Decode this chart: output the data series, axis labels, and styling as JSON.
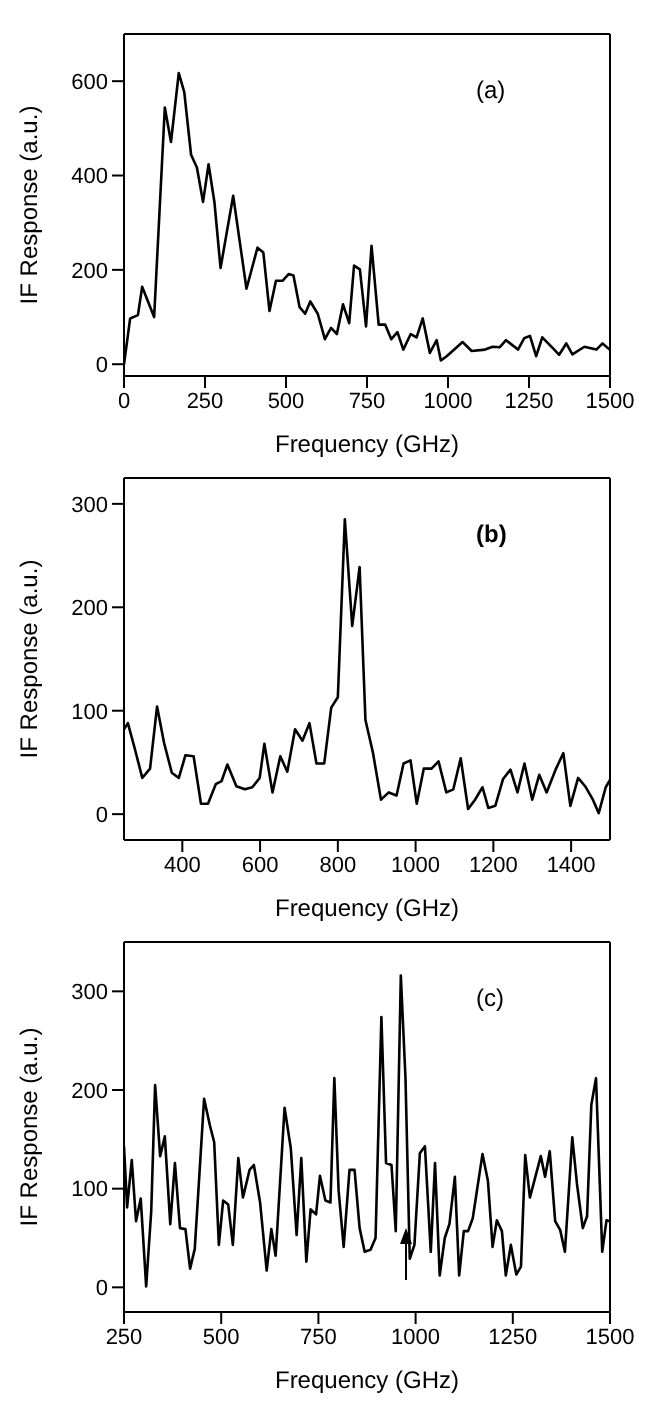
{
  "chart_data": [
    {
      "type": "line",
      "xlabel": "Frequency (GHz)",
      "ylabel": "IF Response (a.u.)",
      "annotations": [
        "(a)"
      ],
      "xlim": [
        0,
        1500
      ],
      "ylim": [
        -25,
        700
      ],
      "xticks": [
        0,
        250,
        500,
        750,
        1000,
        1250,
        1500
      ],
      "yticks": [
        0,
        200,
        400,
        600
      ],
      "line_style": "solid",
      "marker": "none",
      "series": [
        {
          "color": "#000000",
          "x": [
            0,
            19,
            43,
            56,
            93,
            126,
            145,
            169,
            186,
            207,
            225,
            244,
            261,
            279,
            298,
            337,
            378,
            412,
            430,
            449,
            469,
            490,
            508,
            523,
            542,
            559,
            575,
            598,
            620,
            639,
            657,
            676,
            695,
            710,
            728,
            747,
            764,
            786,
            806,
            825,
            844,
            862,
            885,
            903,
            922,
            944,
            965,
            978,
            996,
            1045,
            1073,
            1114,
            1138,
            1160,
            1179,
            1216,
            1235,
            1253,
            1272,
            1291,
            1328,
            1343,
            1365,
            1384,
            1421,
            1458,
            1477,
            1499
          ],
          "values": [
            0,
            97,
            104,
            164,
            100,
            544,
            471,
            617,
            577,
            444,
            417,
            344,
            424,
            344,
            204,
            357,
            160,
            247,
            237,
            113,
            177,
            177,
            191,
            188,
            121,
            107,
            133,
            107,
            53,
            77,
            64,
            127,
            87,
            209,
            201,
            80,
            251,
            84,
            84,
            53,
            68,
            31,
            64,
            57,
            97,
            24,
            51,
            8,
            17,
            47,
            28,
            31,
            37,
            36,
            51,
            31,
            55,
            60,
            17,
            57,
            31,
            20,
            44,
            21,
            37,
            31,
            44,
            31
          ]
        }
      ]
    },
    {
      "type": "line",
      "xlabel": "Frequency (GHz)",
      "ylabel": "IF Response (a.u.)",
      "annotations": [
        "(b)"
      ],
      "xlim": [
        250,
        1500
      ],
      "ylim": [
        -25,
        325
      ],
      "xticks": [
        400,
        600,
        800,
        1000,
        1200,
        1400
      ],
      "yticks": [
        0,
        100,
        200,
        300
      ],
      "line_style": "solid",
      "marker": "none",
      "series": [
        {
          "color": "#000000",
          "x": [
            250,
            260,
            278,
            297,
            317,
            335,
            353,
            373,
            391,
            408,
            429,
            448,
            466,
            486,
            501,
            516,
            539,
            561,
            580,
            599,
            611,
            632,
            652,
            670,
            690,
            709,
            727,
            745,
            765,
            783,
            800,
            818,
            837,
            856,
            871,
            890,
            911,
            931,
            951,
            969,
            987,
            1003,
            1021,
            1041,
            1059,
            1079,
            1097,
            1116,
            1135,
            1153,
            1172,
            1187,
            1205,
            1225,
            1244,
            1262,
            1280,
            1300,
            1318,
            1337,
            1360,
            1380,
            1398,
            1418,
            1436,
            1456,
            1471,
            1489,
            1500
          ],
          "values": [
            82,
            88,
            63,
            35,
            44,
            104,
            69,
            40,
            35,
            57,
            56,
            10,
            10,
            29,
            32,
            48,
            27,
            24,
            26,
            35,
            68,
            21,
            56,
            41,
            82,
            71,
            88,
            49,
            49,
            103,
            113,
            285,
            182,
            239,
            91,
            60,
            14,
            21,
            18,
            49,
            52,
            10,
            44,
            44,
            51,
            21,
            24,
            54,
            5,
            14,
            26,
            6,
            8,
            34,
            43,
            21,
            49,
            14,
            38,
            21,
            43,
            59,
            8,
            35,
            27,
            14,
            1,
            26,
            33
          ]
        }
      ]
    },
    {
      "type": "line",
      "xlabel": "Frequency (GHz)",
      "ylabel": "IF Response (a.u.)",
      "annotations": [
        "(c)"
      ],
      "xlim": [
        250,
        1500
      ],
      "ylim": [
        -25,
        350
      ],
      "xticks": [
        250,
        500,
        750,
        1000,
        1250,
        1500
      ],
      "yticks": [
        0,
        100,
        200,
        300
      ],
      "line_style": "solid",
      "marker": "none",
      "series": [
        {
          "color": "#000000",
          "x": [
            250,
            258,
            270,
            281,
            293,
            307,
            320,
            330,
            343,
            355,
            369,
            381,
            394,
            408,
            420,
            432,
            456,
            471,
            482,
            494,
            505,
            518,
            530,
            544,
            556,
            573,
            584,
            600,
            617,
            629,
            640,
            663,
            679,
            694,
            706,
            719,
            730,
            744,
            754,
            768,
            781,
            791,
            802,
            815,
            830,
            843,
            856,
            869,
            884,
            897,
            912,
            924,
            938,
            949,
            962,
            974,
            985,
            997,
            1011,
            1024,
            1039,
            1050,
            1062,
            1075,
            1087,
            1101,
            1112,
            1124,
            1135,
            1147,
            1172,
            1186,
            1198,
            1209,
            1222,
            1232,
            1245,
            1259,
            1271,
            1282,
            1294,
            1322,
            1333,
            1345,
            1359,
            1372,
            1384,
            1403,
            1415,
            1430,
            1441,
            1452,
            1464,
            1480,
            1491,
            1500
          ],
          "values": [
            143,
            81,
            129,
            67,
            90,
            1,
            77,
            205,
            133,
            153,
            64,
            126,
            60,
            59,
            19,
            39,
            191,
            164,
            147,
            43,
            88,
            84,
            43,
            131,
            91,
            119,
            124,
            86,
            17,
            59,
            32,
            182,
            141,
            53,
            131,
            26,
            79,
            74,
            113,
            88,
            86,
            212,
            98,
            41,
            119,
            119,
            60,
            36,
            38,
            50,
            274,
            126,
            124,
            57,
            316,
            212,
            29,
            43,
            136,
            143,
            36,
            126,
            12,
            50,
            64,
            112,
            12,
            57,
            57,
            70,
            135,
            108,
            41,
            68,
            57,
            12,
            43,
            13,
            21,
            134,
            91,
            133,
            112,
            138,
            67,
            58,
            36,
            152,
            105,
            60,
            72,
            185,
            212,
            36,
            68,
            67
          ]
        }
      ]
    }
  ]
}
